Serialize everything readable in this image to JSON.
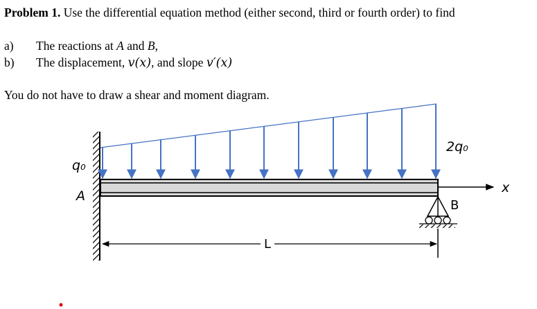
{
  "header": {
    "label": "Problem 1.",
    "text": "Use the differential equation method (either second, third or fourth order) to find"
  },
  "items": [
    {
      "marker": "a)",
      "parts": [
        "The reactions at ",
        "A",
        " and ",
        "B",
        ","
      ]
    },
    {
      "marker": "b)",
      "parts": [
        "The displacement, ",
        "v(x)",
        ", and slope ",
        "v′(x)"
      ]
    }
  ],
  "note": "You do not have to draw a shear and moment diagram.",
  "diagram": {
    "load_left": "q₀",
    "load_right": "2q₀",
    "support_a": "A",
    "support_b": "B",
    "axis": "x",
    "length": "L"
  }
}
